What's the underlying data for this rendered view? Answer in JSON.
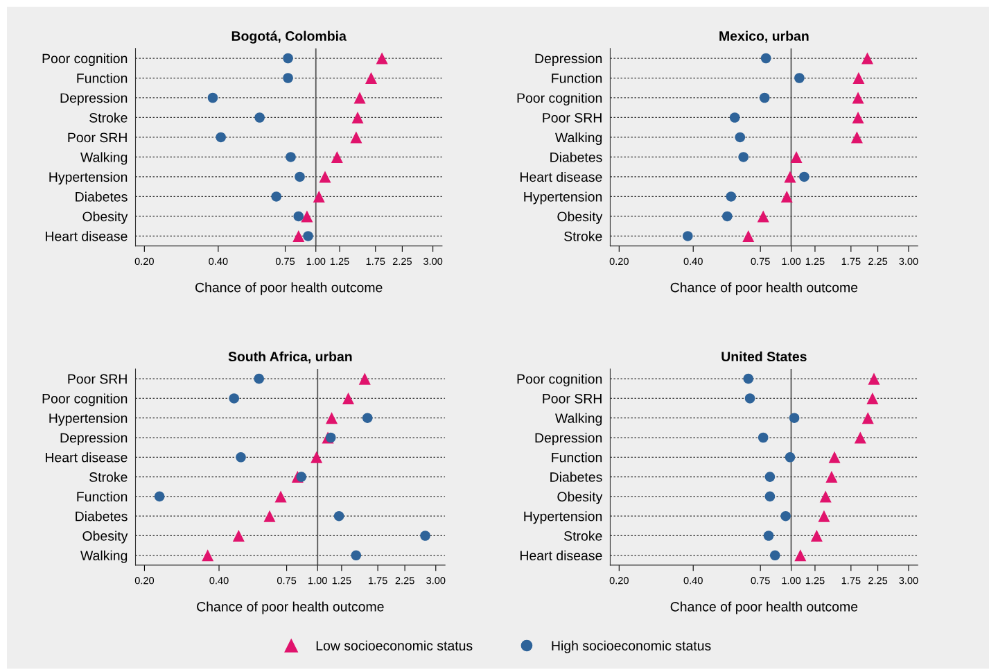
{
  "chart_data": [
    {
      "type": "scatter",
      "orientation": "horizontal",
      "title": "Bogotá, Colombia",
      "xlabel": "Chance of poor health outcome",
      "log": "x",
      "grid": "y",
      "legend": "bottom",
      "categories": [
        "Poor cognition",
        "Function",
        "Depression",
        "Stroke",
        "Poor SRH",
        "Walking",
        "Hypertension",
        "Diabetes",
        "Obesity",
        "Heart disease"
      ],
      "series": [
        {
          "name": "Low socioeconomic status",
          "color": "#e0136c",
          "marker": "triangle",
          "values": [
            1.86,
            1.68,
            1.51,
            1.48,
            1.46,
            1.22,
            1.09,
            1.03,
            0.92,
            0.85
          ]
        },
        {
          "name": "High socioeconomic status",
          "color": "#2e6399",
          "marker": "circle",
          "values": [
            0.77,
            0.77,
            0.38,
            0.59,
            0.41,
            0.79,
            0.86,
            0.69,
            0.85,
            0.93
          ]
        }
      ],
      "xlim": [
        0.184,
        3.27
      ],
      "xticks": [
        {
          "value": 0.2,
          "label": "0.20"
        },
        {
          "value": 0.4,
          "label": "0.40"
        },
        {
          "value": 0.75,
          "label": "0.75"
        },
        {
          "value": 1,
          "label": "1.00"
        },
        {
          "value": 1.25,
          "label": "1.25"
        },
        {
          "value": 1.75,
          "label": "1.75"
        },
        {
          "value": 2.25,
          "label": "2.25"
        },
        {
          "value": 3,
          "label": "3.00"
        }
      ],
      "ref_lines": [
        {
          "axis": "x",
          "value": 1,
          "color": "#555555"
        }
      ]
    },
    {
      "type": "scatter",
      "orientation": "horizontal",
      "title": "Mexico, urban",
      "xlabel": "Chance of poor health outcome",
      "log": "x",
      "grid": "y",
      "categories": [
        "Depression",
        "Function",
        "Poor cognition",
        "Poor SRH",
        "Walking",
        "Diabetes",
        "Heart disease",
        "Hypertension",
        "Obesity",
        "Stroke"
      ],
      "series": [
        {
          "color": "#e0136c",
          "marker": "triangle",
          "values": [
            2.04,
            1.88,
            1.87,
            1.87,
            1.85,
            1.05,
            0.99,
            0.96,
            0.77,
            0.67
          ]
        },
        {
          "color": "#2e6399",
          "marker": "circle",
          "values": [
            0.79,
            1.08,
            0.78,
            0.59,
            0.62,
            0.64,
            1.13,
            0.57,
            0.55,
            0.38
          ]
        }
      ],
      "xlim": [
        0.184,
        3.27
      ],
      "xticks": [
        {
          "value": 0.2,
          "label": "0.20"
        },
        {
          "value": 0.4,
          "label": "0.40"
        },
        {
          "value": 0.75,
          "label": "0.75"
        },
        {
          "value": 1,
          "label": "1.00"
        },
        {
          "value": 1.25,
          "label": "1.25"
        },
        {
          "value": 1.75,
          "label": "1.75"
        },
        {
          "value": 2.25,
          "label": "2.25"
        },
        {
          "value": 3,
          "label": "3.00"
        }
      ],
      "ref_lines": [
        {
          "axis": "x",
          "value": 1,
          "color": "#555555"
        }
      ]
    },
    {
      "type": "scatter",
      "orientation": "horizontal",
      "title": "South Africa, urban",
      "xlabel": "Chance of poor health outcome",
      "log": "x",
      "grid": "y",
      "categories": [
        "Poor SRH",
        "Poor cognition",
        "Hypertension",
        "Depression",
        "Heart disease",
        "Stroke",
        "Function",
        "Diabetes",
        "Obesity",
        "Walking"
      ],
      "series": [
        {
          "color": "#e0136c",
          "marker": "triangle",
          "values": [
            1.55,
            1.33,
            1.14,
            1.1,
            0.99,
            0.83,
            0.71,
            0.64,
            0.48,
            0.36
          ]
        },
        {
          "color": "#2e6399",
          "marker": "circle",
          "values": [
            0.58,
            0.46,
            1.59,
            1.13,
            0.49,
            0.86,
            0.23,
            1.22,
            2.72,
            1.43
          ]
        }
      ],
      "xlim": [
        0.184,
        3.27
      ],
      "xticks": [
        {
          "value": 0.2,
          "label": "0.20"
        },
        {
          "value": 0.4,
          "label": "0.40"
        },
        {
          "value": 0.75,
          "label": "0.75"
        },
        {
          "value": 1,
          "label": "1.00"
        },
        {
          "value": 1.25,
          "label": "1.25"
        },
        {
          "value": 1.75,
          "label": "1.75"
        },
        {
          "value": 2.25,
          "label": "2.25"
        },
        {
          "value": 3,
          "label": "3.00"
        }
      ],
      "ref_lines": [
        {
          "axis": "x",
          "value": 1,
          "color": "#555555"
        }
      ]
    },
    {
      "type": "scatter",
      "orientation": "horizontal",
      "title": "United States",
      "xlabel": "Chance of poor health outcome",
      "log": "x",
      "grid": "y",
      "categories": [
        "Poor cognition",
        "Poor SRH",
        "Walking",
        "Depression",
        "Function",
        "Diabetes",
        "Obesity",
        "Hypertension",
        "Stroke",
        "Heart disease"
      ],
      "series": [
        {
          "color": "#e0136c",
          "marker": "triangle",
          "values": [
            2.17,
            2.14,
            2.05,
            1.91,
            1.5,
            1.46,
            1.38,
            1.36,
            1.27,
            1.09
          ]
        },
        {
          "color": "#2e6399",
          "marker": "circle",
          "values": [
            0.67,
            0.68,
            1.03,
            0.77,
            0.99,
            0.82,
            0.82,
            0.95,
            0.81,
            0.86
          ]
        }
      ],
      "xlim": [
        0.184,
        3.27
      ],
      "xticks": [
        {
          "value": 0.2,
          "label": "0.20"
        },
        {
          "value": 0.4,
          "label": "0.40"
        },
        {
          "value": 0.75,
          "label": "0.75"
        },
        {
          "value": 1,
          "label": "1.00"
        },
        {
          "value": 1.25,
          "label": "1.25"
        },
        {
          "value": 1.75,
          "label": "1.75"
        },
        {
          "value": 2.25,
          "label": "2.25"
        },
        {
          "value": 3,
          "label": "3.00"
        }
      ],
      "ref_lines": [
        {
          "axis": "x",
          "value": 1,
          "color": "#555555"
        }
      ]
    }
  ]
}
